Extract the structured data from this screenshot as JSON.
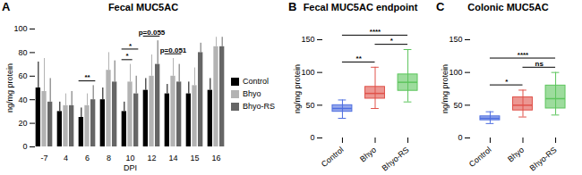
{
  "chart_data": [
    {
      "type": "bar",
      "panel_label": "A",
      "title": "Fecal MUC5AC",
      "x_label": "DPI",
      "y_label": "ng/mg protein",
      "categories": [
        -7,
        4,
        6,
        8,
        10,
        12,
        14,
        15,
        16
      ],
      "series": [
        {
          "name": "Control",
          "color": "#000000",
          "values": [
            50,
            30,
            25,
            40,
            30,
            48,
            45,
            45,
            48
          ],
          "errors": [
            22,
            8,
            8,
            10,
            8,
            10,
            8,
            10,
            10
          ]
        },
        {
          "name": "Bhyo",
          "color": "#b3b3b3",
          "values": [
            47,
            35,
            35,
            65,
            55,
            60,
            60,
            52,
            85
          ],
          "errors": [
            28,
            10,
            10,
            15,
            15,
            18,
            15,
            15,
            8
          ]
        },
        {
          "name": "Bhyo-RS",
          "color": "#666666",
          "values": [
            38,
            35,
            40,
            55,
            45,
            70,
            55,
            80,
            85
          ],
          "errors": [
            20,
            12,
            12,
            18,
            15,
            20,
            15,
            8,
            8
          ]
        }
      ],
      "ylim": [
        0,
        100
      ],
      "yticks": [
        0,
        20,
        40,
        60,
        80,
        100
      ],
      "legend": "right",
      "annotations": [
        {
          "category": 6,
          "from": "Control",
          "to": "Bhyo-RS",
          "text": "**"
        },
        {
          "category": 10,
          "from": "Control",
          "to": "Bhyo",
          "text": "*"
        },
        {
          "category": 10,
          "from": "Control",
          "to": "Bhyo-RS",
          "text": "*"
        },
        {
          "category": 12,
          "from": "Control",
          "to": "Bhyo-RS",
          "text": "p=0.055"
        },
        {
          "category": 14,
          "from": "Control",
          "to": "Bhyo-RS",
          "text": "p=0.051"
        }
      ]
    },
    {
      "type": "box",
      "panel_label": "B",
      "title": "Fecal MUC5AC endpoint",
      "y_label": "ng/mg protein",
      "categories": [
        "Control",
        "Bhyo",
        "Bhyo-RS"
      ],
      "colors": [
        "#4e6ee0",
        "#e0524a",
        "#5cc55c"
      ],
      "boxes": [
        {
          "min": 30,
          "q1": 40,
          "median": 45,
          "q3": 50,
          "max": 58
        },
        {
          "min": 45,
          "q1": 60,
          "median": 68,
          "q3": 78,
          "max": 108
        },
        {
          "min": 55,
          "q1": 72,
          "median": 85,
          "q3": 97,
          "max": 135
        }
      ],
      "ylim": [
        0,
        150
      ],
      "yticks": [
        0,
        50,
        100,
        150
      ],
      "annotations": [
        {
          "from": "Control",
          "to": "Bhyo",
          "text": "**"
        },
        {
          "from": "Bhyo",
          "to": "Bhyo-RS",
          "text": "*"
        },
        {
          "from": "Control",
          "to": "Bhyo-RS",
          "text": "****"
        }
      ]
    },
    {
      "type": "box",
      "panel_label": "C",
      "title": "Colonic MUC5AC",
      "y_label": "ng/mg protein",
      "categories": [
        "Control",
        "Bhyo",
        "Bhyo-RS"
      ],
      "colors": [
        "#4e6ee0",
        "#e0524a",
        "#5cc55c"
      ],
      "boxes": [
        {
          "min": 22,
          "q1": 27,
          "median": 30,
          "q3": 33,
          "max": 40
        },
        {
          "min": 32,
          "q1": 42,
          "median": 50,
          "q3": 62,
          "max": 73
        },
        {
          "min": 35,
          "q1": 45,
          "median": 60,
          "q3": 80,
          "max": 100
        }
      ],
      "ylim": [
        0,
        150
      ],
      "yticks": [
        0,
        50,
        100,
        150
      ],
      "annotations": [
        {
          "from": "Control",
          "to": "Bhyo",
          "text": "*"
        },
        {
          "from": "Bhyo",
          "to": "Bhyo-RS",
          "text": "ns"
        },
        {
          "from": "Control",
          "to": "Bhyo-RS",
          "text": "****"
        }
      ]
    }
  ]
}
